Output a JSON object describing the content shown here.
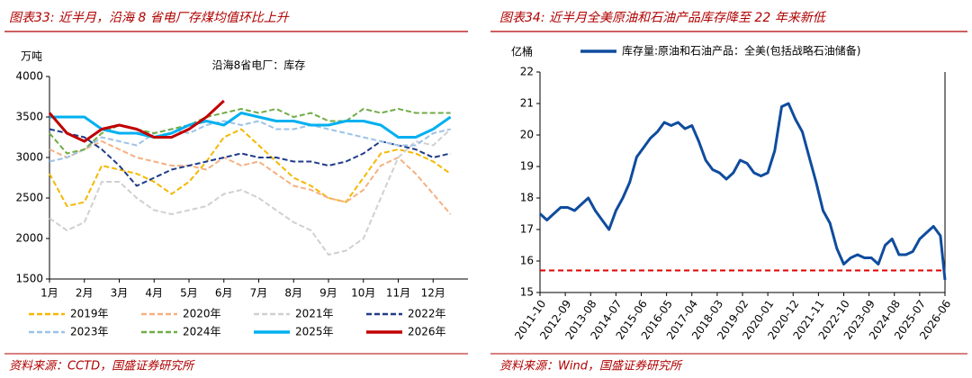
{
  "chart_data": [
    {
      "type": "line",
      "heading": "图表33: 近半月，沿海 8 省电厂存煤均值环比上升",
      "title": "沿海8省电厂：库存",
      "y_label": "万吨",
      "source": "资料来源：CCTD，国盛证券研究所",
      "categories": [
        "1月",
        null,
        "2月",
        null,
        "3月",
        null,
        "4月",
        null,
        "5月",
        null,
        "6月",
        null,
        "7月",
        null,
        "8月",
        null,
        "9月",
        null,
        "10月",
        null,
        "11月",
        null,
        "12月",
        null
      ],
      "ylim": [
        1500,
        4000
      ],
      "yticks": [
        1500,
        2000,
        2500,
        3000,
        3500,
        4000
      ],
      "legend": "bottom",
      "series": [
        {
          "name": "2019年",
          "color": "#f5b800",
          "dashed": true,
          "values": [
            2800,
            2400,
            2450,
            2900,
            2850,
            2800,
            2700,
            2550,
            2700,
            2950,
            3250,
            3350,
            3150,
            2950,
            2750,
            2650,
            2500,
            2450,
            2750,
            3050,
            3100,
            3050,
            2950,
            2800
          ]
        },
        {
          "name": "2020年",
          "color": "#f4b183",
          "dashed": true,
          "values": [
            3100,
            3000,
            3100,
            3200,
            3100,
            3000,
            2950,
            2900,
            2900,
            2850,
            3000,
            2900,
            2950,
            2800,
            2650,
            2600,
            2500,
            2450,
            2600,
            2900,
            3000,
            2800,
            2550,
            2300
          ]
        },
        {
          "name": "2021年",
          "color": "#d0d0d0",
          "dashed": true,
          "values": [
            2250,
            2100,
            2200,
            2700,
            2700,
            2500,
            2350,
            2300,
            2350,
            2400,
            2550,
            2600,
            2500,
            2350,
            2200,
            2100,
            1800,
            1850,
            2000,
            2500,
            3000,
            3200,
            3150,
            3350
          ]
        },
        {
          "name": "2022年",
          "color": "#1f3c88",
          "dashed": true,
          "values": [
            3350,
            3300,
            3250,
            3100,
            2900,
            2650,
            2750,
            2850,
            2900,
            2950,
            3000,
            3050,
            3000,
            3000,
            2950,
            2950,
            2900,
            2950,
            3050,
            3200,
            3150,
            3100,
            3000,
            3050
          ]
        },
        {
          "name": "2023年",
          "color": "#9dc3e6",
          "dashed": true,
          "values": [
            2950,
            3000,
            3100,
            3250,
            3200,
            3150,
            3300,
            3350,
            3300,
            3400,
            3450,
            3400,
            3450,
            3350,
            3350,
            3400,
            3350,
            3300,
            3250,
            3200,
            3150,
            3150,
            3300,
            3350
          ]
        },
        {
          "name": "2024年",
          "color": "#70ad47",
          "dashed": true,
          "values": [
            3300,
            3050,
            3100,
            3300,
            3400,
            3350,
            3300,
            3350,
            3400,
            3500,
            3550,
            3600,
            3550,
            3600,
            3500,
            3550,
            3450,
            3450,
            3600,
            3550,
            3600,
            3550,
            3550,
            3550
          ]
        },
        {
          "name": "2025年",
          "color": "#00b0f0",
          "dashed": false,
          "values": [
            3500,
            3500,
            3500,
            3350,
            3300,
            3300,
            3250,
            3300,
            3400,
            3450,
            3400,
            3550,
            3500,
            3450,
            3450,
            3400,
            3400,
            3450,
            3450,
            3400,
            3250,
            3250,
            3350,
            3500
          ]
        },
        {
          "name": "2026年",
          "color": "#c00000",
          "dashed": false,
          "values": [
            3550,
            3300,
            3200,
            3350,
            3400,
            3350,
            3250,
            3250,
            3350,
            3500,
            3700,
            null,
            null,
            null,
            null,
            null,
            null,
            null,
            null,
            null,
            null,
            null,
            null,
            null
          ]
        }
      ]
    },
    {
      "type": "line",
      "heading": "图表34: 近半月全美原油和石油产品库存降至 22 年来新低",
      "y_label": "亿桶",
      "source": "资料来源：Wind，国盛证券研究所",
      "legend": "top",
      "x": [
        "2011-10",
        "2012-01",
        "2012-04",
        "2012-07",
        "2012-10",
        "2013-01",
        "2013-04",
        "2013-07",
        "2013-10",
        "2014-01",
        "2014-04",
        "2014-07",
        "2014-10",
        "2015-01",
        "2015-04",
        "2015-07",
        "2015-10",
        "2016-01",
        "2016-04",
        "2016-07",
        "2016-10",
        "2017-01",
        "2017-04",
        "2017-07",
        "2017-10",
        "2018-01",
        "2018-04",
        "2018-07",
        "2018-10",
        "2019-01",
        "2019-04",
        "2019-07",
        "2019-10",
        "2020-01",
        "2020-04",
        "2020-07",
        "2020-10",
        "2021-01",
        "2021-04",
        "2021-07",
        "2021-10",
        "2022-01",
        "2022-04",
        "2022-07",
        "2022-10",
        "2023-01",
        "2023-04",
        "2023-07",
        "2023-10",
        "2024-01",
        "2024-04",
        "2024-07",
        "2024-10",
        "2025-01",
        "2025-04",
        "2025-07",
        "2025-10",
        "2026-01",
        "2026-04",
        "2026-06"
      ],
      "xlim": [
        "2011-10",
        "2026-06"
      ],
      "xticks": [
        "2011-10",
        "2012-09",
        "2013-08",
        "2014-07",
        "2015-06",
        "2016-05",
        "2017-04",
        "2018-03",
        "2019-02",
        "2020-01",
        "2020-12",
        "2021-11",
        "2022-10",
        "2023-09",
        "2024-08",
        "2025-07",
        "2026-06"
      ],
      "ylim": [
        15,
        22
      ],
      "yticks": [
        15,
        16,
        17,
        18,
        19,
        20,
        21,
        22
      ],
      "reference_line": {
        "value": 15.7,
        "color": "#e00000"
      },
      "series": [
        {
          "name": "库存量:原油和石油产品：全美(包括战略石油储备)",
          "color": "#0f4c9e",
          "dashed": false,
          "values": [
            17.5,
            17.3,
            17.5,
            17.7,
            17.7,
            17.6,
            17.8,
            18.0,
            17.6,
            17.3,
            17.0,
            17.6,
            18.0,
            18.5,
            19.3,
            19.6,
            19.9,
            20.1,
            20.4,
            20.3,
            20.4,
            20.2,
            20.3,
            19.8,
            19.2,
            18.9,
            18.8,
            18.6,
            18.8,
            19.2,
            19.1,
            18.8,
            18.7,
            18.8,
            19.5,
            20.9,
            21.0,
            20.5,
            20.1,
            19.3,
            18.5,
            17.6,
            17.2,
            16.4,
            15.9,
            16.1,
            16.2,
            16.1,
            16.1,
            15.9,
            16.5,
            16.7,
            16.2,
            16.2,
            16.3,
            16.7,
            16.9,
            17.1,
            16.8,
            15.4
          ]
        }
      ]
    }
  ]
}
